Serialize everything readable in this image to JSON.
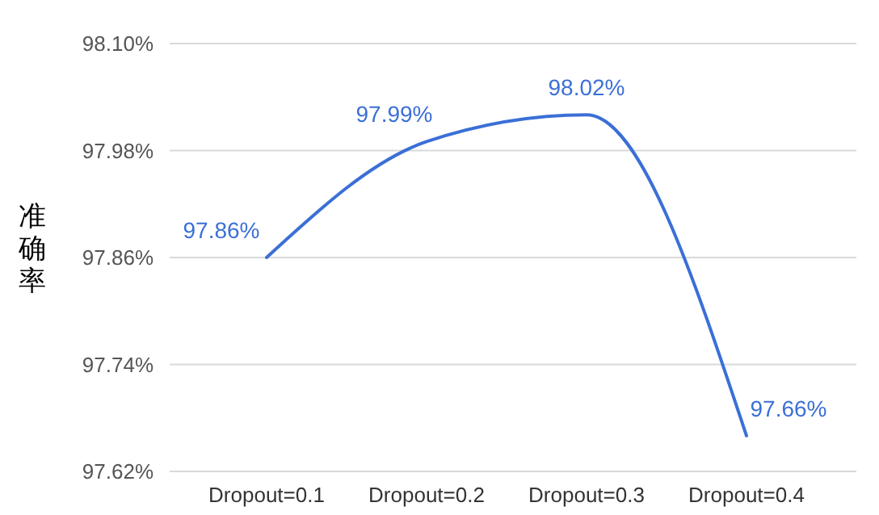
{
  "chart_data": {
    "type": "line",
    "ylabel": "准确率",
    "categories": [
      "Dropout=0.1",
      "Dropout=0.2",
      "Dropout=0.3",
      "Dropout=0.4"
    ],
    "series": [
      {
        "color": "#3b6fd6",
        "values": [
          97.86,
          97.99,
          98.02,
          97.66
        ],
        "value_labels": [
          "97.86%",
          "97.99%",
          "98.02%",
          "97.66%"
        ]
      }
    ],
    "ylim": [
      97.62,
      98.1
    ],
    "yticks": [
      {
        "value": 97.62,
        "label": "97.62%"
      },
      {
        "value": 97.74,
        "label": "97.74%"
      },
      {
        "value": 97.86,
        "label": "97.86%"
      },
      {
        "value": 97.98,
        "label": "97.98%"
      },
      {
        "value": 98.1,
        "label": "98.10%"
      }
    ],
    "grid": "y",
    "marker": "none",
    "line_style": "solid"
  }
}
